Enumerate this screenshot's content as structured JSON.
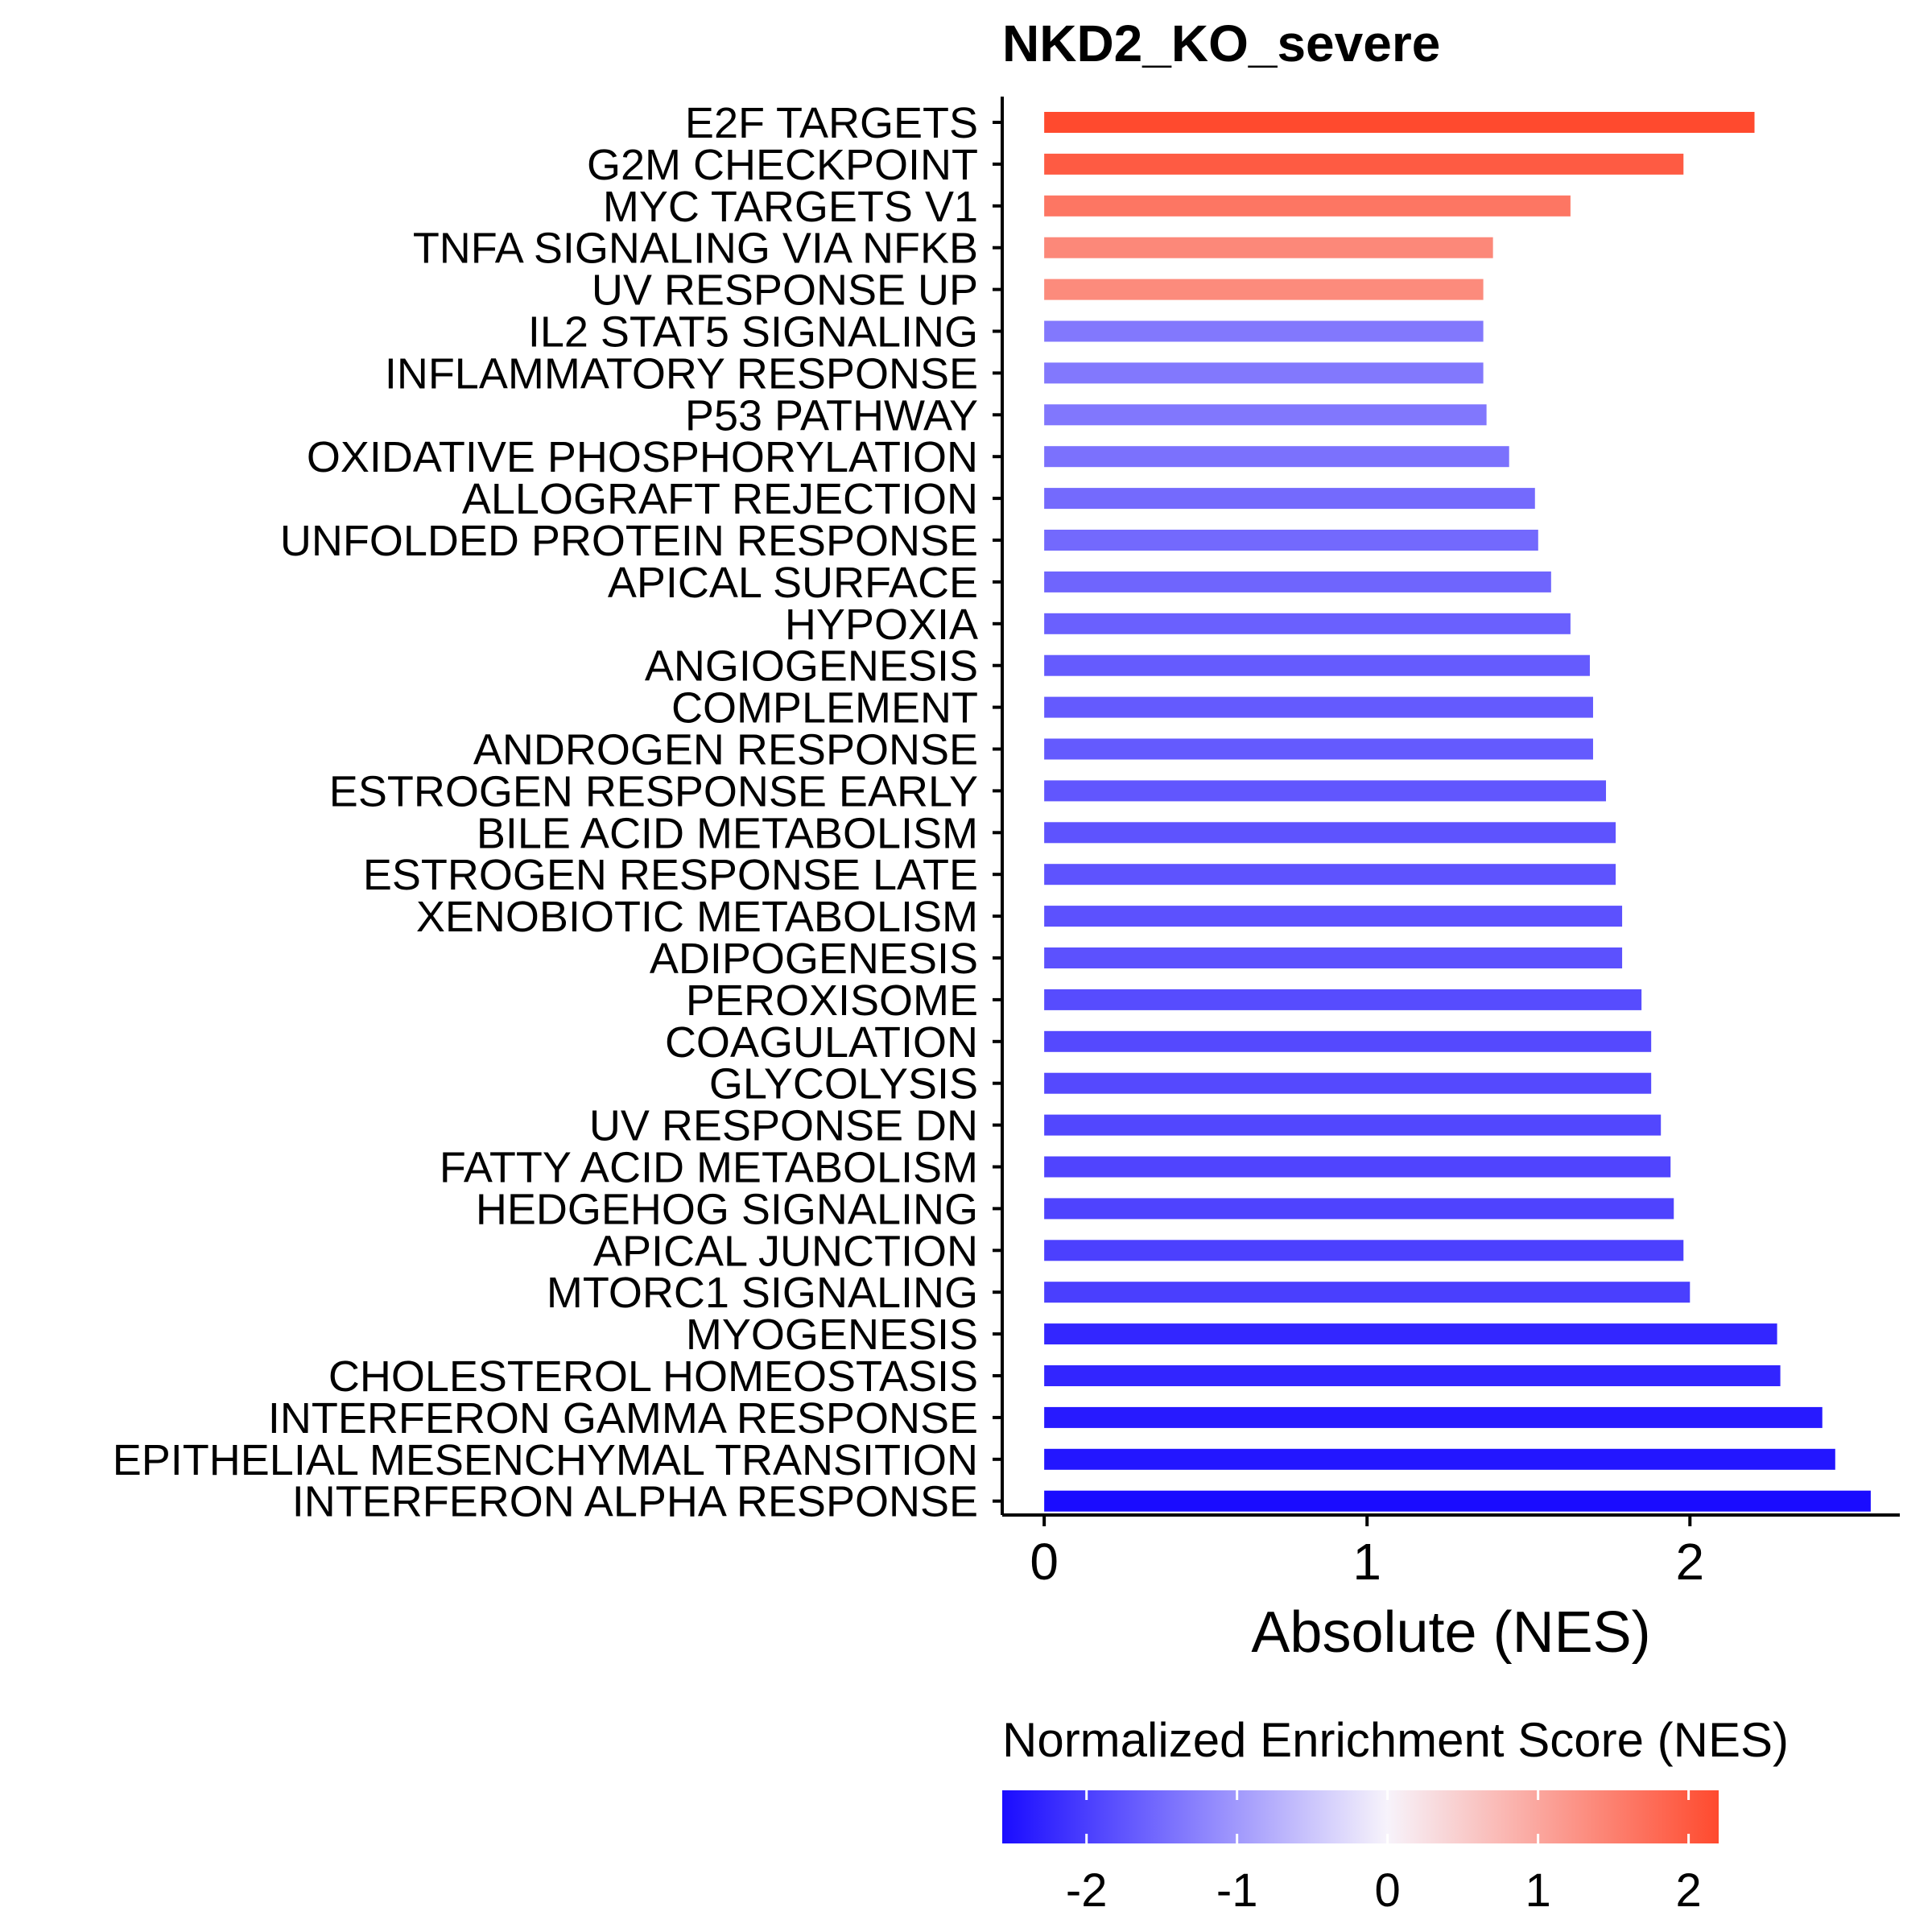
{
  "chart_data": {
    "type": "bar",
    "orientation": "horizontal",
    "title": "NKD2_KO_severe",
    "xlabel": "Absolute (NES)",
    "ylabel": "",
    "xlim": [
      -0.13,
      2.65
    ],
    "xticks": [
      "0",
      "1",
      "2"
    ],
    "grid": false,
    "categories": [
      "E2F TARGETS",
      "G2M CHECKPOINT",
      "MYC TARGETS V1",
      "TNFA SIGNALING VIA NFKB",
      "UV RESPONSE UP",
      "IL2 STAT5 SIGNALING",
      "INFLAMMATORY RESPONSE",
      "P53 PATHWAY",
      "OXIDATIVE PHOSPHORYLATION",
      "ALLOGRAFT REJECTION",
      "UNFOLDED PROTEIN RESPONSE",
      "APICAL SURFACE",
      "HYPOXIA",
      "ANGIOGENESIS",
      "COMPLEMENT",
      "ANDROGEN RESPONSE",
      "ESTROGEN RESPONSE EARLY",
      "BILE ACID METABOLISM",
      "ESTROGEN RESPONSE LATE",
      "XENOBIOTIC METABOLISM",
      "ADIPOGENESIS",
      "PEROXISOME",
      "COAGULATION",
      "GLYCOLYSIS",
      "UV RESPONSE DN",
      "FATTY ACID METABOLISM",
      "HEDGEHOG SIGNALING",
      "APICAL JUNCTION",
      "MTORC1 SIGNALING",
      "MYOGENESIS",
      "CHOLESTEROL HOMEOSTASIS",
      "INTERFERON GAMMA RESPONSE",
      "EPITHELIAL MESENCHYMAL TRANSITION",
      "INTERFERON ALPHA RESPONSE"
    ],
    "values": [
      2.2,
      1.98,
      1.63,
      1.39,
      1.36,
      1.36,
      1.36,
      1.37,
      1.44,
      1.52,
      1.53,
      1.57,
      1.63,
      1.69,
      1.7,
      1.7,
      1.74,
      1.77,
      1.77,
      1.79,
      1.79,
      1.85,
      1.88,
      1.88,
      1.91,
      1.94,
      1.95,
      1.98,
      2.0,
      2.27,
      2.28,
      2.41,
      2.45,
      2.56
    ],
    "nes": [
      2.2,
      1.98,
      1.63,
      1.39,
      1.36,
      -1.36,
      -1.36,
      -1.37,
      -1.44,
      -1.52,
      -1.53,
      -1.57,
      -1.63,
      -1.69,
      -1.7,
      -1.7,
      -1.74,
      -1.77,
      -1.77,
      -1.79,
      -1.79,
      -1.85,
      -1.88,
      -1.88,
      -1.91,
      -1.94,
      -1.95,
      -1.98,
      -2.0,
      -2.27,
      -2.28,
      -2.41,
      -2.45,
      -2.56
    ],
    "color_scale": {
      "title": "Normalized Enrichment Score (NES)",
      "min": -2.56,
      "max": 2.2,
      "low_color": "#1a0cff",
      "mid_color": "#f7f3fb",
      "high_color": "#ff4a2e",
      "ticks": [
        -2,
        -1,
        0,
        1,
        2
      ],
      "tick_labels": [
        "-2",
        "-1",
        "0",
        "1",
        "2"
      ],
      "position": "bottom"
    }
  }
}
